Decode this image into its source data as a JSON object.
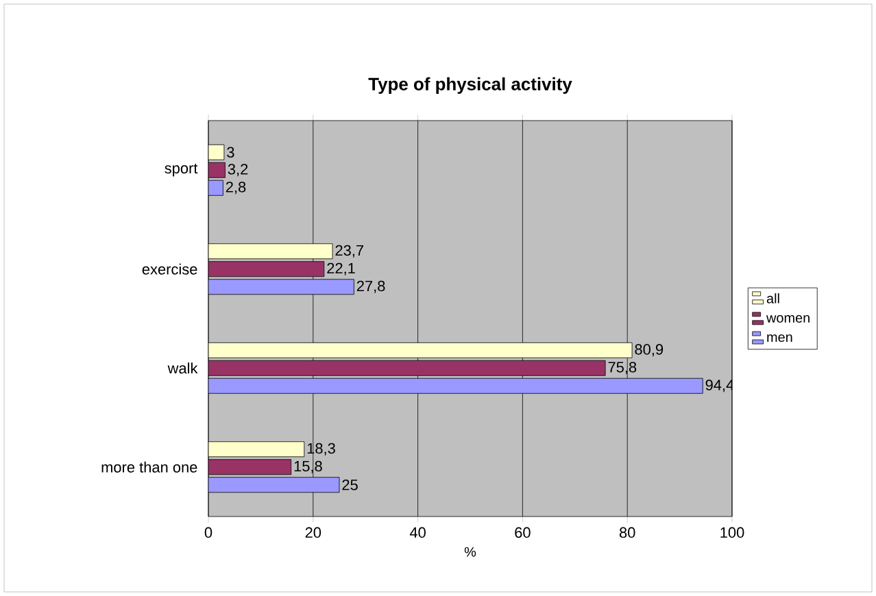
{
  "chart_data": {
    "type": "bar",
    "orientation": "horizontal",
    "title": "Type of physical activity",
    "xlabel": "%",
    "categories": [
      "sport",
      "exercise",
      "walk",
      "more than one"
    ],
    "series": [
      {
        "name": "all",
        "color": "#ffffcc",
        "values": [
          3,
          23.7,
          80.9,
          18.3
        ],
        "value_labels": [
          "3",
          "23,7",
          "80,9",
          "18,3"
        ]
      },
      {
        "name": "women",
        "color": "#993366",
        "values": [
          3.2,
          22.1,
          75.8,
          15.8
        ],
        "value_labels": [
          "3,2",
          "22,1",
          "75,8",
          "15,8"
        ]
      },
      {
        "name": "men",
        "color": "#9999ff",
        "values": [
          2.8,
          27.8,
          94.4,
          25
        ],
        "value_labels": [
          "2,8",
          "27,8",
          "94,4",
          "25"
        ]
      }
    ],
    "xlim": [
      0,
      100
    ],
    "xticks": [
      0,
      20,
      40,
      60,
      80,
      100
    ],
    "grid": "x",
    "legend": "right"
  }
}
